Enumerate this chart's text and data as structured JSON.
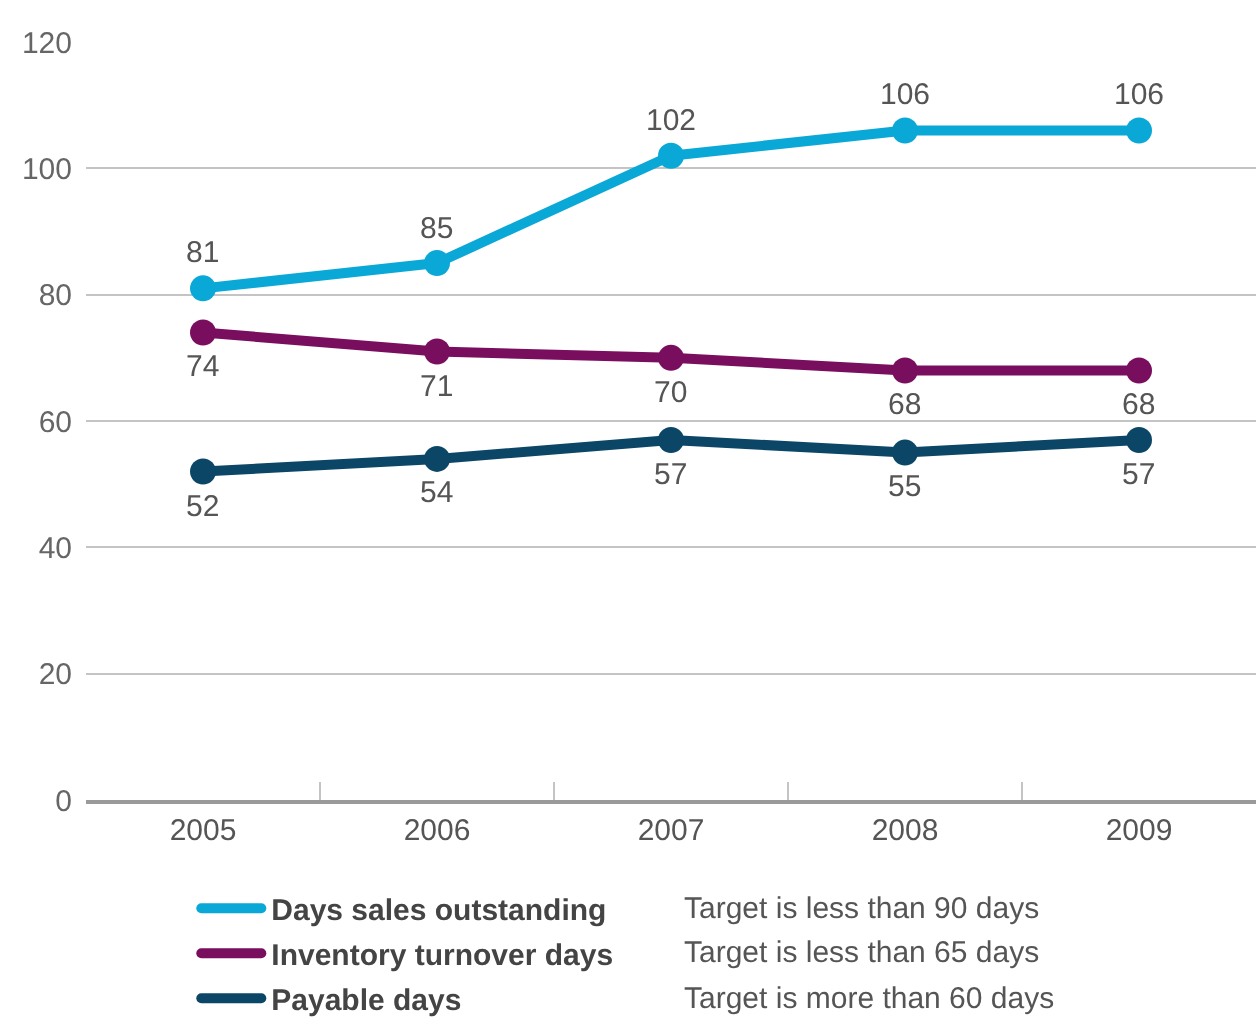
{
  "chart_data": {
    "type": "line",
    "categories": [
      "2005",
      "2006",
      "2007",
      "2008",
      "2009"
    ],
    "series": [
      {
        "name": "Days sales outstanding",
        "color": "#0aa8d6",
        "values": [
          81,
          85,
          102,
          106,
          106
        ]
      },
      {
        "name": "Inventory turnover days",
        "color": "#7a0e5e",
        "values": [
          74,
          71,
          70,
          68,
          68
        ]
      },
      {
        "name": "Payable days",
        "color": "#0c4667",
        "values": [
          52,
          54,
          57,
          55,
          57
        ]
      }
    ],
    "ylim": [
      0,
      120
    ],
    "yticks": [
      0,
      20,
      40,
      60,
      80,
      100,
      120
    ],
    "grid": "y",
    "legend": "bottom",
    "marker": "circle",
    "line_style": "solid",
    "data_labels": true,
    "annotations": [
      "Target is less than 90 days",
      "Target is less than 65 days",
      "Target is more than 60 days"
    ]
  }
}
